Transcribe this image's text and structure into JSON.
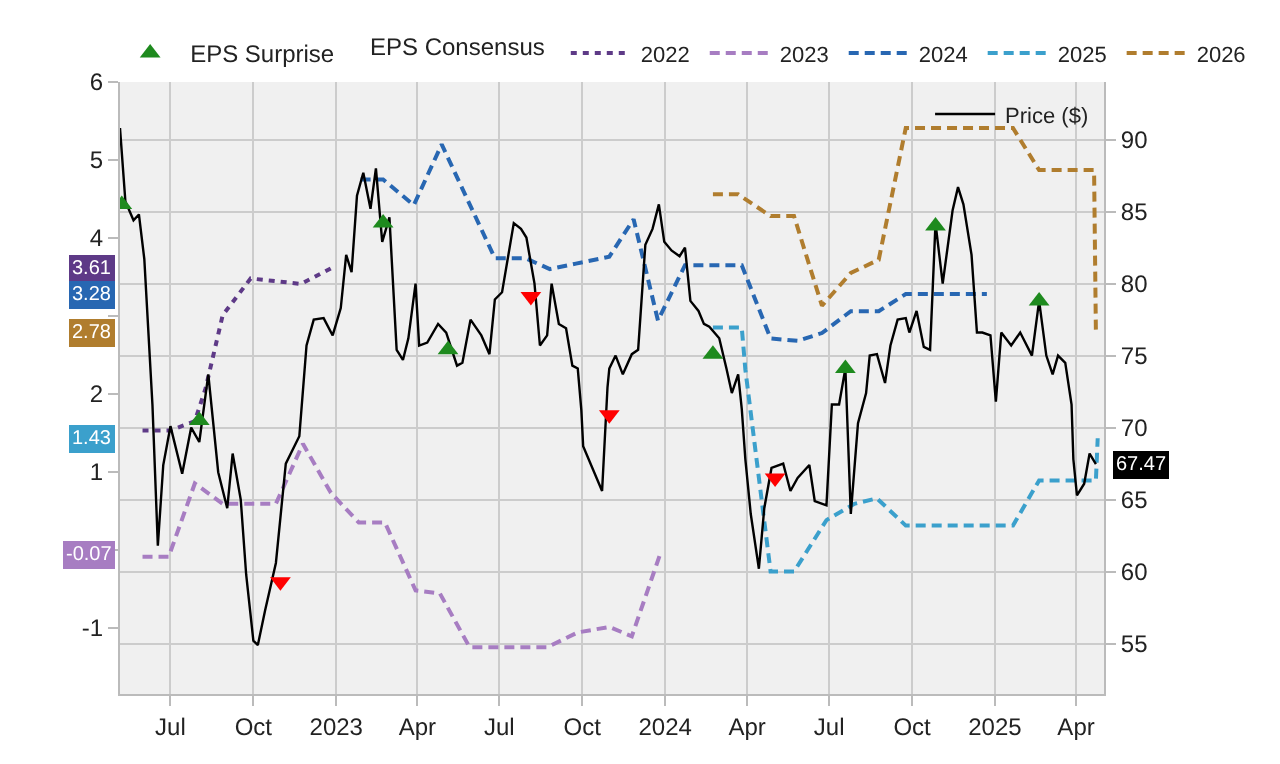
{
  "chart_data": {
    "type": "line",
    "legend_title": "EPS Consensus",
    "annotations": [
      {
        "text": "3.61",
        "y": 3.61
      },
      {
        "text": "3.28",
        "y": 3.28
      },
      {
        "text": "2.78",
        "y": 2.78
      },
      {
        "text": "1.43",
        "y": 1.43
      },
      {
        "text": "-0.07",
        "y": -0.07
      },
      "67.47"
    ],
    "legend": "top",
    "grid": true,
    "xlim": [
      "2022-05-06",
      "2025-05-02"
    ],
    "xticks": [
      {
        "value": "2022-07-01",
        "label": "Jul"
      },
      {
        "value": "2022-10-01",
        "label": "Oct"
      },
      {
        "value": "2023-01-01",
        "label": "2023"
      },
      {
        "value": "2023-04-01",
        "label": "Apr"
      },
      {
        "value": "2023-07-01",
        "label": "Jul"
      },
      {
        "value": "2023-10-01",
        "label": "Oct"
      },
      {
        "value": "2024-01-01",
        "label": "2024"
      },
      {
        "value": "2024-04-01",
        "label": "Apr"
      },
      {
        "value": "2024-07-01",
        "label": "Jul"
      },
      {
        "value": "2024-10-01",
        "label": "Oct"
      },
      {
        "value": "2025-01-01",
        "label": "2025"
      },
      {
        "value": "2025-04-01",
        "label": "Apr"
      }
    ],
    "ylim": [
      -1.85,
      6
    ],
    "yticks": [
      -1,
      {
        "value": 0,
        "label": null
      },
      1,
      2,
      {
        "value": 3,
        "label": null
      },
      4,
      5,
      6
    ],
    "y2lim": [
      51.5,
      94
    ],
    "y2ticks": [
      55,
      60,
      65,
      70,
      75,
      80,
      85,
      90
    ],
    "series": [
      {
        "name": "2022",
        "color": "#5e3a87",
        "line_style": "dotted",
        "x": [
          "2022-05-31",
          "2022-07-01",
          "2022-07-28",
          "2022-08-09",
          "2022-08-28",
          "2022-09-28",
          "2022-11-23",
          "2022-12-26"
        ],
        "values": [
          1.53,
          1.53,
          1.65,
          2.07,
          3.01,
          3.48,
          3.41,
          3.61
        ]
      },
      {
        "name": "2023",
        "color": "#a77dc2",
        "line_style": "dashed",
        "x": [
          "2022-05-31",
          "2022-06-29",
          "2022-07-28",
          "2022-08-28",
          "2022-10-26",
          "2022-11-25",
          "2022-12-26",
          "2023-01-26",
          "2023-02-24",
          "2023-03-30",
          "2023-04-26",
          "2023-05-29",
          "2023-08-23",
          "2023-09-26",
          "2023-10-31",
          "2023-11-25",
          "2023-12-26"
        ],
        "values": [
          -0.09,
          -0.09,
          0.85,
          0.59,
          0.59,
          1.36,
          0.73,
          0.35,
          0.35,
          -0.52,
          -0.56,
          -1.25,
          -1.25,
          -1.06,
          -0.99,
          -1.11,
          -0.07
        ]
      },
      {
        "name": "2024",
        "color": "#2867b2",
        "line_style": "dashed",
        "x": [
          "2023-01-28",
          "2023-02-22",
          "2023-03-28",
          "2023-04-28",
          "2023-06-26",
          "2023-07-30",
          "2023-08-26",
          "2023-09-24",
          "2023-10-31",
          "2023-11-27",
          "2023-12-24",
          "2024-01-23",
          "2024-03-26",
          "2024-04-27",
          "2024-05-27",
          "2024-06-23",
          "2024-07-25",
          "2024-08-25",
          "2024-09-24",
          "2024-12-23"
        ],
        "values": [
          4.75,
          4.75,
          4.42,
          5.2,
          3.74,
          3.74,
          3.6,
          3.67,
          3.76,
          4.24,
          2.94,
          3.65,
          3.65,
          2.71,
          2.68,
          2.78,
          3.06,
          3.06,
          3.28,
          3.28
        ]
      },
      {
        "name": "2025",
        "color": "#3ba0cc",
        "line_style": "dashed",
        "x": [
          "2024-02-23",
          "2024-03-26",
          "2024-03-30",
          "2024-04-27",
          "2024-05-23",
          "2024-06-28",
          "2024-07-29",
          "2024-08-23",
          "2024-09-24",
          "2025-01-21",
          "2025-02-19",
          "2025-04-23",
          "2025-04-25"
        ],
        "values": [
          2.85,
          2.85,
          2.31,
          -0.28,
          -0.28,
          0.38,
          0.59,
          0.66,
          0.31,
          0.31,
          0.89,
          0.89,
          1.43
        ]
      },
      {
        "name": "2026",
        "color": "#b07d2e",
        "line_style": "dashed",
        "x": [
          "2024-02-23",
          "2024-03-22",
          "2024-04-27",
          "2024-05-23",
          "2024-06-23",
          "2024-07-25",
          "2024-08-25",
          "2024-09-24",
          "2025-01-21",
          "2025-02-19",
          "2025-04-21",
          "2025-04-23"
        ],
        "values": [
          4.56,
          4.56,
          4.28,
          4.28,
          3.13,
          3.55,
          3.72,
          5.41,
          5.41,
          4.87,
          4.87,
          2.78
        ]
      },
      {
        "name": "Price ($)",
        "color": "#000000",
        "axis": "y2",
        "line_style": "solid",
        "x": [
          "2022-05-06",
          "2022-05-12",
          "2022-05-21",
          "2022-05-27",
          "2022-06-02",
          "2022-06-11",
          "2022-06-17",
          "2022-06-23",
          "2022-07-01",
          "2022-07-14",
          "2022-07-24",
          "2022-08-02",
          "2022-08-12",
          "2022-08-23",
          "2022-09-02",
          "2022-09-08",
          "2022-09-17",
          "2022-09-23",
          "2022-10-01",
          "2022-10-06",
          "2022-10-14",
          "2022-10-26",
          "2022-11-06",
          "2022-11-21",
          "2022-11-29",
          "2022-12-07",
          "2022-12-18",
          "2022-12-28",
          "2023-01-06",
          "2023-01-12",
          "2023-01-18",
          "2023-01-24",
          "2023-01-31",
          "2023-02-08",
          "2023-02-14",
          "2023-02-21",
          "2023-03-01",
          "2023-03-09",
          "2023-03-16",
          "2023-03-22",
          "2023-03-30",
          "2023-04-03",
          "2023-04-12",
          "2023-04-24",
          "2023-05-03",
          "2023-05-15",
          "2023-05-21",
          "2023-05-30",
          "2023-06-11",
          "2023-06-20",
          "2023-06-26",
          "2023-07-04",
          "2023-07-17",
          "2023-07-25",
          "2023-07-31",
          "2023-08-09",
          "2023-08-15",
          "2023-08-23",
          "2023-08-28",
          "2023-09-05",
          "2023-09-13",
          "2023-09-20",
          "2023-09-26",
          "2023-09-30",
          "2023-10-02",
          "2023-10-23",
          "2023-10-29",
          "2023-10-31",
          "2023-11-07",
          "2023-11-15",
          "2023-11-25",
          "2023-12-02",
          "2023-12-10",
          "2023-12-18",
          "2023-12-25",
          "2023-12-31",
          "2024-01-08",
          "2024-01-17",
          "2024-01-23",
          "2024-01-29",
          "2024-02-07",
          "2024-02-13",
          "2024-02-19",
          "2024-03-01",
          "2024-03-09",
          "2024-03-15",
          "2024-03-22",
          "2024-03-26",
          "2024-03-30",
          "2024-04-05",
          "2024-04-14",
          "2024-04-20",
          "2024-04-28",
          "2024-05-11",
          "2024-05-19",
          "2024-05-27",
          "2024-06-09",
          "2024-06-15",
          "2024-06-28",
          "2024-07-04",
          "2024-07-12",
          "2024-07-19",
          "2024-07-25",
          "2024-08-02",
          "2024-08-11",
          "2024-08-15",
          "2024-08-23",
          "2024-09-01",
          "2024-09-07",
          "2024-09-15",
          "2024-09-24",
          "2024-09-28",
          "2024-10-06",
          "2024-10-14",
          "2024-10-21",
          "2024-10-27",
          "2024-11-04",
          "2024-11-15",
          "2024-11-21",
          "2024-11-27",
          "2024-12-06",
          "2024-12-12",
          "2024-12-18",
          "2024-12-27",
          "2025-01-02",
          "2025-01-08",
          "2025-01-19",
          "2025-01-29",
          "2025-02-11",
          "2025-02-19",
          "2025-02-27",
          "2025-03-06",
          "2025-03-12",
          "2025-03-20",
          "2025-03-27",
          "2025-03-29",
          "2025-04-02",
          "2025-04-10",
          "2025-04-16",
          "2025-04-23"
        ],
        "values": [
          90.8,
          85.7,
          84.4,
          84.8,
          81.7,
          71.6,
          61.8,
          67.4,
          70.1,
          66.8,
          70.0,
          69.0,
          73.7,
          66.9,
          64.4,
          68.2,
          65.0,
          59.8,
          55.2,
          54.9,
          57.3,
          60.6,
          67.5,
          69.4,
          75.7,
          77.5,
          77.6,
          76.4,
          78.3,
          82.0,
          80.8,
          86.1,
          87.7,
          85.2,
          88.0,
          82.9,
          84.6,
          75.4,
          74.7,
          76.2,
          80.0,
          75.7,
          75.9,
          77.2,
          76.6,
          74.3,
          74.5,
          77.5,
          76.4,
          75.1,
          78.9,
          79.4,
          84.2,
          83.8,
          83.2,
          80.0,
          75.7,
          76.4,
          80.0,
          77.2,
          76.9,
          74.3,
          74.1,
          71.2,
          68.7,
          65.6,
          72.8,
          74.1,
          75.0,
          73.7,
          75.1,
          75.4,
          82.7,
          83.8,
          85.5,
          82.9,
          82.3,
          81.9,
          82.5,
          78.8,
          78.1,
          77.2,
          77.0,
          76.2,
          74.1,
          72.4,
          73.7,
          71.3,
          67.8,
          64.0,
          60.2,
          64.4,
          67.2,
          67.5,
          65.6,
          66.5,
          67.4,
          64.9,
          64.6,
          71.6,
          71.6,
          74.1,
          64.0,
          70.3,
          72.4,
          75.0,
          75.1,
          73.1,
          75.7,
          77.5,
          77.6,
          76.6,
          78.1,
          75.6,
          75.4,
          84.2,
          80.0,
          85.1,
          86.7,
          85.5,
          82.0,
          76.6,
          76.6,
          76.4,
          71.8,
          76.6,
          75.7,
          76.6,
          75.0,
          78.8,
          75.0,
          73.7,
          75.0,
          74.5,
          71.6,
          67.8,
          65.3,
          66.1,
          68.2,
          67.47
        ]
      },
      {
        "name": "EPS Surprise",
        "type": "scatter",
        "color": "#1e8a1e",
        "axis": "y2",
        "marker": "triangle",
        "x": [
          "2022-05-08",
          "2022-08-02",
          "2023-02-22",
          "2023-05-05",
          "2024-02-23",
          "2024-07-19",
          "2024-10-27",
          "2025-02-19"
        ],
        "values": [
          85.5,
          70.5,
          84.2,
          75.4,
          75.1,
          74.1,
          84.0,
          78.8
        ]
      },
      {
        "type": "scatter",
        "color": "#ff0000",
        "axis": "y2",
        "marker": "triangle-down",
        "x": [
          "2022-10-31",
          "2023-08-05",
          "2023-10-31",
          "2024-05-02"
        ],
        "values": [
          59.3,
          79.1,
          70.9,
          66.5
        ]
      }
    ]
  }
}
